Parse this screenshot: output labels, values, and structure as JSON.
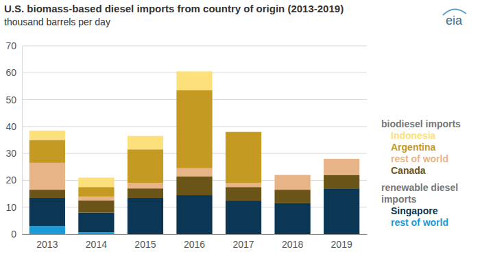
{
  "chart_data": {
    "type": "bar",
    "stacked": true,
    "grid": true,
    "legend": "right",
    "title": "U.S. biomass-based diesel imports from country of origin (2013-2019)",
    "subtitle": "thousand barrels per day",
    "logo": "eia",
    "categories": [
      "2013",
      "2014",
      "2015",
      "2016",
      "2017",
      "2018",
      "2019"
    ],
    "ylim": [
      0,
      70
    ],
    "yticks": [
      0,
      10,
      20,
      30,
      40,
      50,
      60,
      70
    ],
    "series": [
      {
        "name": "rest of world",
        "group": "renewable diesel imports",
        "color": "#1a9ad6",
        "values": [
          3,
          0.7,
          0,
          0,
          0,
          0,
          0
        ]
      },
      {
        "name": "Singapore",
        "group": "renewable diesel imports",
        "color": "#0b3654",
        "values": [
          10.5,
          7.3,
          13.5,
          14.5,
          12.5,
          11.5,
          17
        ]
      },
      {
        "name": "Canada",
        "group": "biodiesel imports",
        "color": "#6b5418",
        "values": [
          3,
          4.5,
          3.5,
          7,
          5,
          5,
          5
        ]
      },
      {
        "name": "rest of world",
        "group": "biodiesel imports",
        "color": "#e7b488",
        "values": [
          10,
          1.5,
          2,
          3,
          1.5,
          5.5,
          6
        ]
      },
      {
        "name": "Argentina",
        "group": "biodiesel imports",
        "color": "#c49a22",
        "values": [
          8.5,
          3.5,
          12.5,
          29,
          19,
          0,
          0
        ]
      },
      {
        "name": "Indonesia",
        "group": "biodiesel imports",
        "color": "#fbe07c",
        "values": [
          3.5,
          3.5,
          5,
          7,
          0,
          0,
          0
        ]
      }
    ]
  }
}
